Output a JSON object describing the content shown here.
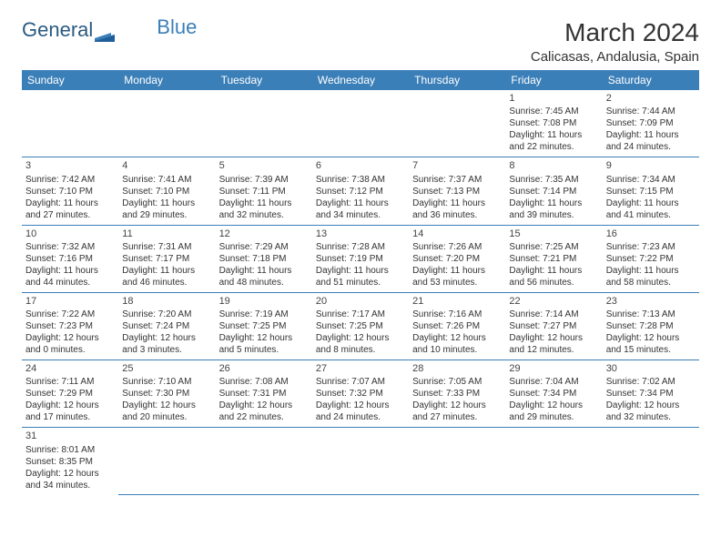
{
  "logo": {
    "part1": "General",
    "part2": "Blue"
  },
  "title": "March 2024",
  "location": "Calicasas, Andalusia, Spain",
  "headers": [
    "Sunday",
    "Monday",
    "Tuesday",
    "Wednesday",
    "Thursday",
    "Friday",
    "Saturday"
  ],
  "weeks": [
    [
      null,
      null,
      null,
      null,
      null,
      {
        "d": "1",
        "sr": "Sunrise: 7:45 AM",
        "ss": "Sunset: 7:08 PM",
        "dl1": "Daylight: 11 hours",
        "dl2": "and 22 minutes."
      },
      {
        "d": "2",
        "sr": "Sunrise: 7:44 AM",
        "ss": "Sunset: 7:09 PM",
        "dl1": "Daylight: 11 hours",
        "dl2": "and 24 minutes."
      }
    ],
    [
      {
        "d": "3",
        "sr": "Sunrise: 7:42 AM",
        "ss": "Sunset: 7:10 PM",
        "dl1": "Daylight: 11 hours",
        "dl2": "and 27 minutes."
      },
      {
        "d": "4",
        "sr": "Sunrise: 7:41 AM",
        "ss": "Sunset: 7:10 PM",
        "dl1": "Daylight: 11 hours",
        "dl2": "and 29 minutes."
      },
      {
        "d": "5",
        "sr": "Sunrise: 7:39 AM",
        "ss": "Sunset: 7:11 PM",
        "dl1": "Daylight: 11 hours",
        "dl2": "and 32 minutes."
      },
      {
        "d": "6",
        "sr": "Sunrise: 7:38 AM",
        "ss": "Sunset: 7:12 PM",
        "dl1": "Daylight: 11 hours",
        "dl2": "and 34 minutes."
      },
      {
        "d": "7",
        "sr": "Sunrise: 7:37 AM",
        "ss": "Sunset: 7:13 PM",
        "dl1": "Daylight: 11 hours",
        "dl2": "and 36 minutes."
      },
      {
        "d": "8",
        "sr": "Sunrise: 7:35 AM",
        "ss": "Sunset: 7:14 PM",
        "dl1": "Daylight: 11 hours",
        "dl2": "and 39 minutes."
      },
      {
        "d": "9",
        "sr": "Sunrise: 7:34 AM",
        "ss": "Sunset: 7:15 PM",
        "dl1": "Daylight: 11 hours",
        "dl2": "and 41 minutes."
      }
    ],
    [
      {
        "d": "10",
        "sr": "Sunrise: 7:32 AM",
        "ss": "Sunset: 7:16 PM",
        "dl1": "Daylight: 11 hours",
        "dl2": "and 44 minutes."
      },
      {
        "d": "11",
        "sr": "Sunrise: 7:31 AM",
        "ss": "Sunset: 7:17 PM",
        "dl1": "Daylight: 11 hours",
        "dl2": "and 46 minutes."
      },
      {
        "d": "12",
        "sr": "Sunrise: 7:29 AM",
        "ss": "Sunset: 7:18 PM",
        "dl1": "Daylight: 11 hours",
        "dl2": "and 48 minutes."
      },
      {
        "d": "13",
        "sr": "Sunrise: 7:28 AM",
        "ss": "Sunset: 7:19 PM",
        "dl1": "Daylight: 11 hours",
        "dl2": "and 51 minutes."
      },
      {
        "d": "14",
        "sr": "Sunrise: 7:26 AM",
        "ss": "Sunset: 7:20 PM",
        "dl1": "Daylight: 11 hours",
        "dl2": "and 53 minutes."
      },
      {
        "d": "15",
        "sr": "Sunrise: 7:25 AM",
        "ss": "Sunset: 7:21 PM",
        "dl1": "Daylight: 11 hours",
        "dl2": "and 56 minutes."
      },
      {
        "d": "16",
        "sr": "Sunrise: 7:23 AM",
        "ss": "Sunset: 7:22 PM",
        "dl1": "Daylight: 11 hours",
        "dl2": "and 58 minutes."
      }
    ],
    [
      {
        "d": "17",
        "sr": "Sunrise: 7:22 AM",
        "ss": "Sunset: 7:23 PM",
        "dl1": "Daylight: 12 hours",
        "dl2": "and 0 minutes."
      },
      {
        "d": "18",
        "sr": "Sunrise: 7:20 AM",
        "ss": "Sunset: 7:24 PM",
        "dl1": "Daylight: 12 hours",
        "dl2": "and 3 minutes."
      },
      {
        "d": "19",
        "sr": "Sunrise: 7:19 AM",
        "ss": "Sunset: 7:25 PM",
        "dl1": "Daylight: 12 hours",
        "dl2": "and 5 minutes."
      },
      {
        "d": "20",
        "sr": "Sunrise: 7:17 AM",
        "ss": "Sunset: 7:25 PM",
        "dl1": "Daylight: 12 hours",
        "dl2": "and 8 minutes."
      },
      {
        "d": "21",
        "sr": "Sunrise: 7:16 AM",
        "ss": "Sunset: 7:26 PM",
        "dl1": "Daylight: 12 hours",
        "dl2": "and 10 minutes."
      },
      {
        "d": "22",
        "sr": "Sunrise: 7:14 AM",
        "ss": "Sunset: 7:27 PM",
        "dl1": "Daylight: 12 hours",
        "dl2": "and 12 minutes."
      },
      {
        "d": "23",
        "sr": "Sunrise: 7:13 AM",
        "ss": "Sunset: 7:28 PM",
        "dl1": "Daylight: 12 hours",
        "dl2": "and 15 minutes."
      }
    ],
    [
      {
        "d": "24",
        "sr": "Sunrise: 7:11 AM",
        "ss": "Sunset: 7:29 PM",
        "dl1": "Daylight: 12 hours",
        "dl2": "and 17 minutes."
      },
      {
        "d": "25",
        "sr": "Sunrise: 7:10 AM",
        "ss": "Sunset: 7:30 PM",
        "dl1": "Daylight: 12 hours",
        "dl2": "and 20 minutes."
      },
      {
        "d": "26",
        "sr": "Sunrise: 7:08 AM",
        "ss": "Sunset: 7:31 PM",
        "dl1": "Daylight: 12 hours",
        "dl2": "and 22 minutes."
      },
      {
        "d": "27",
        "sr": "Sunrise: 7:07 AM",
        "ss": "Sunset: 7:32 PM",
        "dl1": "Daylight: 12 hours",
        "dl2": "and 24 minutes."
      },
      {
        "d": "28",
        "sr": "Sunrise: 7:05 AM",
        "ss": "Sunset: 7:33 PM",
        "dl1": "Daylight: 12 hours",
        "dl2": "and 27 minutes."
      },
      {
        "d": "29",
        "sr": "Sunrise: 7:04 AM",
        "ss": "Sunset: 7:34 PM",
        "dl1": "Daylight: 12 hours",
        "dl2": "and 29 minutes."
      },
      {
        "d": "30",
        "sr": "Sunrise: 7:02 AM",
        "ss": "Sunset: 7:34 PM",
        "dl1": "Daylight: 12 hours",
        "dl2": "and 32 minutes."
      }
    ],
    [
      {
        "d": "31",
        "sr": "Sunrise: 8:01 AM",
        "ss": "Sunset: 8:35 PM",
        "dl1": "Daylight: 12 hours",
        "dl2": "and 34 minutes."
      },
      null,
      null,
      null,
      null,
      null,
      null
    ]
  ],
  "colors": {
    "header_bg": "#3b7fb8",
    "header_text": "#ffffff",
    "border": "#3b7fb8"
  }
}
